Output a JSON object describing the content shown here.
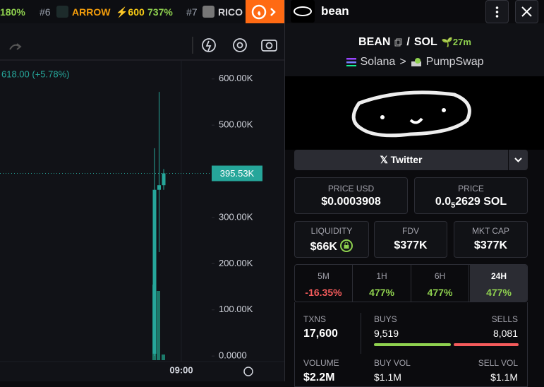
{
  "ticker": {
    "lead_change": "180%",
    "items": [
      {
        "rank": "#6",
        "name": "ARROW",
        "boost": "⚡600",
        "change": "737%"
      },
      {
        "rank": "#7",
        "name": "RICO"
      }
    ]
  },
  "chart_data": {
    "type": "candlestick",
    "price_label": "618.00 (+5.78%)",
    "x_label": "09:00",
    "categories": [
      null,
      null,
      null
    ],
    "open": [
      5000,
      360000,
      370000
    ],
    "high": [
      450000,
      572000,
      405000
    ],
    "low": [
      0,
      225000,
      360000
    ],
    "close": [
      360000,
      370000,
      395530
    ],
    "color": "#26a69a",
    "ylim": [
      -12000,
      641000
    ],
    "yticks": [
      {
        "value": 0,
        "label": "0.0000"
      },
      {
        "value": 100000,
        "label": "100.00K"
      },
      {
        "value": 200000,
        "label": "200.00K"
      },
      {
        "value": 300000,
        "label": "300.00K"
      },
      {
        "value": 500000,
        "label": "500.00K"
      },
      {
        "value": 600000,
        "label": "600.00K"
      }
    ],
    "current": {
      "value": 395530,
      "label": "395.53K"
    }
  },
  "header": {
    "title": "bean"
  },
  "pair": {
    "base": "BEAN",
    "separator": "/",
    "quote": "SOL",
    "age": "27m",
    "chain": "Solana",
    "arrow": ">",
    "dex": "PumpSwap"
  },
  "social": {
    "twitter": "Twitter"
  },
  "price": {
    "usd_label": "PRICE USD",
    "usd_value": "$0.0003908",
    "native_label": "PRICE",
    "native_prefix": "0.0",
    "native_zeros": "5",
    "native_rest": "2629 SOL"
  },
  "metrics": [
    {
      "label": "LIQUIDITY",
      "value": "$66K"
    },
    {
      "label": "FDV",
      "value": "$377K"
    },
    {
      "label": "MKT CAP",
      "value": "$377K"
    }
  ],
  "tabs": [
    {
      "label": "5M",
      "value": "-16.35%"
    },
    {
      "label": "1H",
      "value": "477%"
    },
    {
      "label": "6H",
      "value": "477%"
    },
    {
      "label": "24H",
      "value": "477%"
    }
  ],
  "stats": {
    "txns_label": "TXNS",
    "txns": "17,600",
    "buys_label": "BUYS",
    "buys": "9,519",
    "sells_label": "SELLS",
    "sells": "8,081",
    "volume_label": "VOLUME",
    "volume": "$2.2M",
    "buy_vol_label": "BUY VOL",
    "buy_vol": "$1.1M",
    "sell_vol_label": "SELL VOL",
    "sell_vol": "$1.1M"
  }
}
